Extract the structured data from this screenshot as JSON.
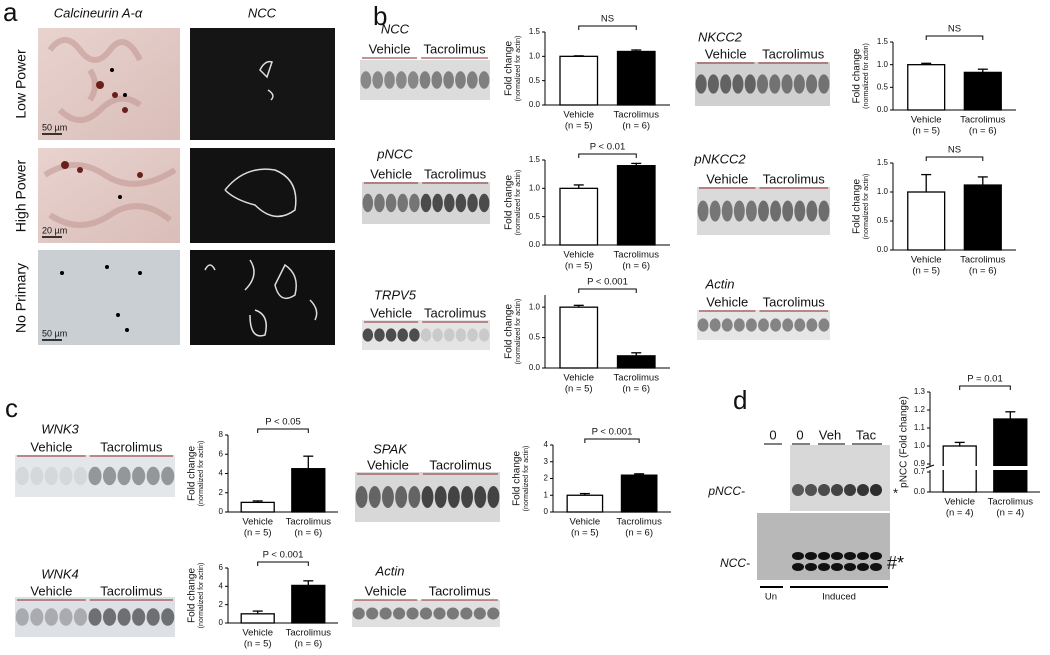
{
  "panels": [
    "a",
    "b",
    "c",
    "d"
  ],
  "panel_a": {
    "columns": [
      "Calcineurin A-α",
      "NCC"
    ],
    "rows": [
      "Low Power",
      "High Power",
      "No Primary"
    ],
    "scale_bars": [
      "50 µm",
      "20 µm",
      "50 µm"
    ]
  },
  "blots": [
    {
      "label": "NCC",
      "groups": [
        "Vehicle",
        "Tacrolimus"
      ]
    },
    {
      "label": "pNCC",
      "groups": [
        "Vehicle",
        "Tacrolimus"
      ]
    },
    {
      "label": "TRPV5",
      "groups": [
        "Vehicle",
        "Tacrolimus"
      ]
    },
    {
      "label": "NKCC2",
      "groups": [
        "Vehicle",
        "Tacrolimus"
      ]
    },
    {
      "label": "pNKCC2",
      "groups": [
        "Vehicle",
        "Tacrolimus"
      ]
    },
    {
      "label": "Actin",
      "groups": [
        "Vehicle",
        "Tacrolimus"
      ]
    },
    {
      "label": "WNK3",
      "groups": [
        "Vehicle",
        "Tacrolimus"
      ]
    },
    {
      "label": "WNK4",
      "groups": [
        "Vehicle",
        "Tacrolimus"
      ]
    },
    {
      "label": "SPAK",
      "groups": [
        "Vehicle",
        "Tacrolimus"
      ]
    },
    {
      "label": "Actin",
      "groups": [
        "Vehicle",
        "Tacrolimus"
      ]
    }
  ],
  "panel_d_blot": {
    "lanes": [
      "0",
      "0",
      "Veh",
      "Tac"
    ],
    "rows": [
      "pNCC-",
      "NCC-"
    ],
    "markers": [
      "*",
      "#*"
    ],
    "conditions": [
      "Un",
      "Induced"
    ]
  },
  "chart_data": [
    {
      "type": "bar",
      "ylabel": "Fold change",
      "ysublabel": "(normalized for actin)",
      "categories": [
        "Vehicle",
        "Tacrolimus"
      ],
      "n_labels": [
        "(n = 5)",
        "(n = 6)"
      ],
      "values": [
        1.0,
        1.1
      ],
      "errors": [
        0.01,
        0.03
      ],
      "colors": [
        "#ffffff",
        "#000000"
      ],
      "ylim": [
        0,
        1.5
      ],
      "yticks": [
        {
          "value": 0,
          "label": "0.0"
        },
        0.5,
        {
          "value": 1,
          "label": "1.0"
        },
        1.5
      ],
      "annotation": "NS"
    },
    {
      "type": "bar",
      "ylabel": "Fold change",
      "ysublabel": "(normalized for actin)",
      "categories": [
        "Vehicle",
        "Tacrolimus"
      ],
      "n_labels": [
        "(n = 5)",
        "(n = 6)"
      ],
      "values": [
        1.0,
        1.4
      ],
      "errors": [
        0.06,
        0.04
      ],
      "colors": [
        "#ffffff",
        "#000000"
      ],
      "ylim": [
        0,
        1.5
      ],
      "yticks": [
        {
          "value": 0,
          "label": "0.0"
        },
        0.5,
        {
          "value": 1,
          "label": "1.0"
        },
        1.5
      ],
      "annotation": "P < 0.01"
    },
    {
      "type": "bar",
      "ylabel": "Fold change",
      "ysublabel": "(normalized for actin)",
      "categories": [
        "Vehicle",
        "Tacrolimus"
      ],
      "n_labels": [
        "(n = 5)",
        "(n = 6)"
      ],
      "values": [
        1.0,
        0.2
      ],
      "errors": [
        0.03,
        0.05
      ],
      "colors": [
        "#ffffff",
        "#000000"
      ],
      "ylim": [
        0,
        1.2
      ],
      "yticks": [
        {
          "value": 0,
          "label": "0.0"
        },
        0.5,
        {
          "value": 1,
          "label": "1.0"
        }
      ],
      "annotation": "P < 0.001"
    },
    {
      "type": "bar",
      "ylabel": "Fold change",
      "ysublabel": "(normalized for actin)",
      "categories": [
        "Vehicle",
        "Tacrolimus"
      ],
      "n_labels": [
        "(n = 5)",
        "(n = 6)"
      ],
      "values": [
        1.0,
        0.83
      ],
      "errors": [
        0.03,
        0.07
      ],
      "colors": [
        "#ffffff",
        "#000000"
      ],
      "ylim": [
        0,
        1.5
      ],
      "yticks": [
        {
          "value": 0,
          "label": "0.0"
        },
        0.5,
        {
          "value": 1,
          "label": "1.0"
        },
        1.5
      ],
      "annotation": "NS"
    },
    {
      "type": "bar",
      "ylabel": "Fold change",
      "ysublabel": "(normalized for actin)",
      "categories": [
        "Vehicle",
        "Tacrolimus"
      ],
      "n_labels": [
        "(n = 5)",
        "(n = 6)"
      ],
      "values": [
        1.0,
        1.12
      ],
      "errors": [
        0.3,
        0.14
      ],
      "colors": [
        "#ffffff",
        "#000000"
      ],
      "ylim": [
        0,
        1.5
      ],
      "yticks": [
        {
          "value": 0,
          "label": "0.0"
        },
        0.5,
        {
          "value": 1,
          "label": "1.0"
        },
        1.5
      ],
      "annotation": "NS"
    },
    {
      "type": "bar",
      "ylabel": "Fold change",
      "ysublabel": "(normalized for actin)",
      "categories": [
        "Vehicle",
        "Tacrolimus"
      ],
      "n_labels": [
        "(n = 5)",
        "(n = 6)"
      ],
      "values": [
        1.0,
        4.5
      ],
      "errors": [
        0.15,
        1.3
      ],
      "colors": [
        "#ffffff",
        "#000000"
      ],
      "ylim": [
        0,
        8
      ],
      "yticks": [
        0,
        2,
        4,
        6,
        8
      ],
      "annotation": "P < 0.05"
    },
    {
      "type": "bar",
      "ylabel": "Fold change",
      "ysublabel": "(normalized for actin)",
      "categories": [
        "Vehicle",
        "Tacrolimus"
      ],
      "n_labels": [
        "(n = 5)",
        "(n = 6)"
      ],
      "values": [
        1.0,
        4.1
      ],
      "errors": [
        0.3,
        0.5
      ],
      "colors": [
        "#ffffff",
        "#000000"
      ],
      "ylim": [
        0,
        6
      ],
      "yticks": [
        0,
        2,
        4,
        6
      ],
      "annotation": "P < 0.001"
    },
    {
      "type": "bar",
      "ylabel": "Fold change",
      "ysublabel": "(normalized for actin)",
      "categories": [
        "Vehicle",
        "Tacrolimus"
      ],
      "n_labels": [
        "(n = 5)",
        "(n = 6)"
      ],
      "values": [
        1.0,
        2.2
      ],
      "errors": [
        0.1,
        0.08
      ],
      "colors": [
        "#ffffff",
        "#000000"
      ],
      "ylim": [
        0,
        4
      ],
      "yticks": [
        0,
        1,
        2,
        3,
        4
      ],
      "annotation": "P < 0.001"
    },
    {
      "type": "bar",
      "ylabel": "pNCC (Fold change)",
      "categories": [
        "Vehicle",
        "Tacrolimus"
      ],
      "n_labels": [
        "(n = 4)",
        "(n = 4)"
      ],
      "values": [
        1.0,
        1.15
      ],
      "errors": [
        0.02,
        0.04
      ],
      "colors": [
        "#ffffff",
        "#000000"
      ],
      "ylim": [
        0,
        1.3
      ],
      "ybreak": [
        0.7,
        0.9
      ],
      "yticks": [
        {
          "value": 0,
          "label": "0.0"
        },
        0.7,
        0.9,
        {
          "value": 1,
          "label": "1.0"
        },
        1.1,
        1.2,
        1.3
      ],
      "annotation": "P = 0.01"
    }
  ]
}
